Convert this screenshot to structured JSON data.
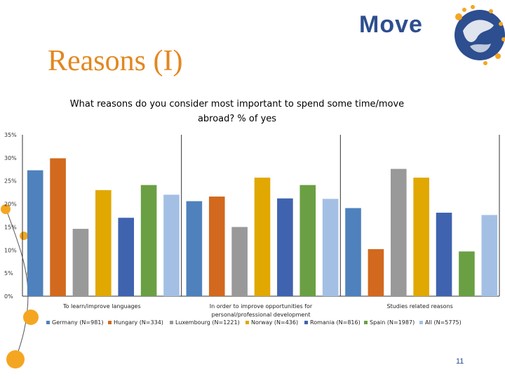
{
  "slide": {
    "title": "Reasons (I)",
    "logo_text": "Move",
    "page_number": "11"
  },
  "colors": {
    "title": "#E2871F",
    "logo": "#2D4E8F",
    "decor_orange": "#F4A623"
  },
  "chart_data": {
    "type": "bar",
    "title": "What reasons do you consider most important to spend some time/move abroad? % of yes",
    "title_lines": [
      "What reasons do you consider most important to spend some time/move",
      "abroad? % of yes"
    ],
    "xlabel": "",
    "ylabel": "",
    "ylim": [
      0,
      35
    ],
    "yticks": [
      0,
      5,
      10,
      15,
      20,
      25,
      30,
      35
    ],
    "ytick_labels": [
      "0%",
      "5%",
      "10%",
      "15%",
      "20%",
      "25%",
      "30%",
      "35%"
    ],
    "grid": false,
    "legend": "bottom",
    "categories": [
      [
        "To learn/improve languages"
      ],
      [
        "In order to improve opportunities for",
        "personal/professional development"
      ],
      [
        "Studies related reasons"
      ]
    ],
    "series": [
      {
        "name": "Germany (N=981)",
        "color": "#4F81BD",
        "values": [
          27.3,
          20.6,
          19.1
        ]
      },
      {
        "name": "Hungary (N=334)",
        "color": "#D2691E",
        "values": [
          29.9,
          21.6,
          10.2
        ]
      },
      {
        "name": "Luxembourg (N=1221)",
        "color": "#999999",
        "values": [
          14.6,
          15.0,
          27.6
        ]
      },
      {
        "name": "Norway (N=436)",
        "color": "#E0A800",
        "values": [
          23.0,
          25.7,
          25.7
        ]
      },
      {
        "name": "Romania (N=816)",
        "color": "#3F63AF",
        "values": [
          17.0,
          21.2,
          18.1
        ]
      },
      {
        "name": "Spain (N=1987)",
        "color": "#6AA043",
        "values": [
          24.1,
          24.1,
          9.7
        ]
      },
      {
        "name": "All (N=5775)",
        "color": "#A3C0E4",
        "values": [
          22.0,
          21.1,
          17.6
        ]
      }
    ]
  }
}
